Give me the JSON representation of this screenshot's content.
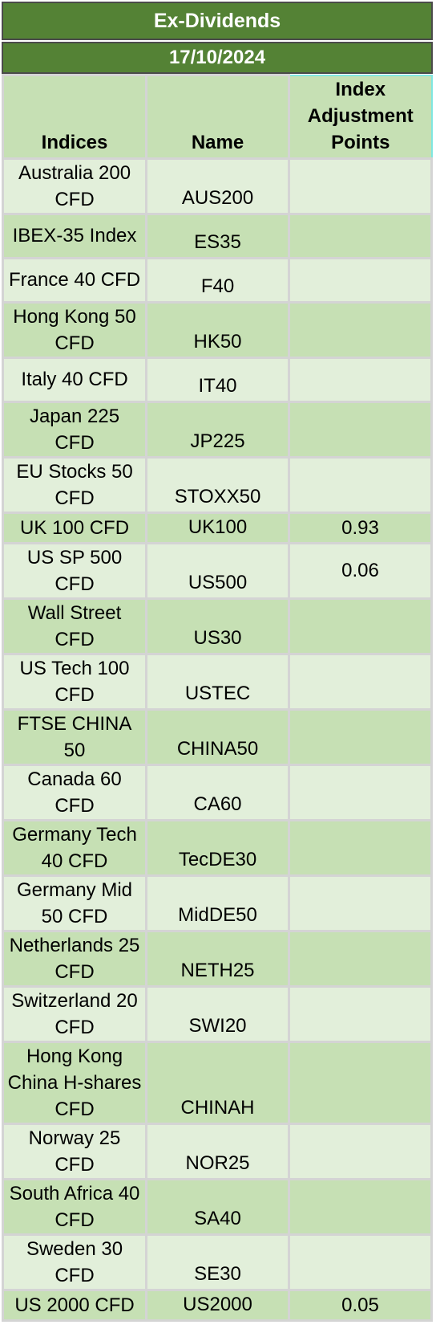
{
  "title": "Ex-Dividends",
  "date": "17/10/2024",
  "columns": [
    "Indices",
    "Name",
    "Index Adjustment Points"
  ],
  "rows": [
    {
      "index": "Australia 200 CFD",
      "name": "AUS200",
      "adj": ""
    },
    {
      "index": "IBEX-35 Index",
      "name": "ES35",
      "adj": ""
    },
    {
      "index": "France 40 CFD",
      "name": "F40",
      "adj": ""
    },
    {
      "index": "Hong Kong 50 CFD",
      "name": "HK50",
      "adj": ""
    },
    {
      "index": "Italy 40 CFD",
      "name": "IT40",
      "adj": ""
    },
    {
      "index": "Japan 225 CFD",
      "name": "JP225",
      "adj": ""
    },
    {
      "index": "EU Stocks 50 CFD",
      "name": "STOXX50",
      "adj": ""
    },
    {
      "index": "UK 100 CFD",
      "name": "UK100",
      "adj": "0.93"
    },
    {
      "index": "US SP 500 CFD",
      "name": "US500",
      "adj": "0.06"
    },
    {
      "index": "Wall Street CFD",
      "name": "US30",
      "adj": ""
    },
    {
      "index": "US Tech 100 CFD",
      "name": "USTEC",
      "adj": ""
    },
    {
      "index": "FTSE CHINA 50",
      "name": "CHINA50",
      "adj": ""
    },
    {
      "index": "Canada 60 CFD",
      "name": "CA60",
      "adj": ""
    },
    {
      "index": "Germany Tech 40 CFD",
      "name": "TecDE30",
      "adj": ""
    },
    {
      "index": "Germany Mid 50 CFD",
      "name": "MidDE50",
      "adj": ""
    },
    {
      "index": "Netherlands 25 CFD",
      "name": "NETH25",
      "adj": ""
    },
    {
      "index": "Switzerland 20 CFD",
      "name": "SWI20",
      "adj": ""
    },
    {
      "index": "Hong Kong China H-shares CFD",
      "name": "CHINAH",
      "adj": ""
    },
    {
      "index": "Norway 25 CFD",
      "name": "NOR25",
      "adj": ""
    },
    {
      "index": "South Africa 40 CFD",
      "name": "SA40",
      "adj": ""
    },
    {
      "index": "Sweden 30 CFD",
      "name": "SE30",
      "adj": ""
    },
    {
      "index": "US 2000 CFD",
      "name": "US2000",
      "adj": "0.05"
    }
  ],
  "colors": {
    "banner": "#548235",
    "row_light": "#e2efda",
    "row_dark": "#c6e0b4",
    "grid": "#d4d4d4"
  }
}
